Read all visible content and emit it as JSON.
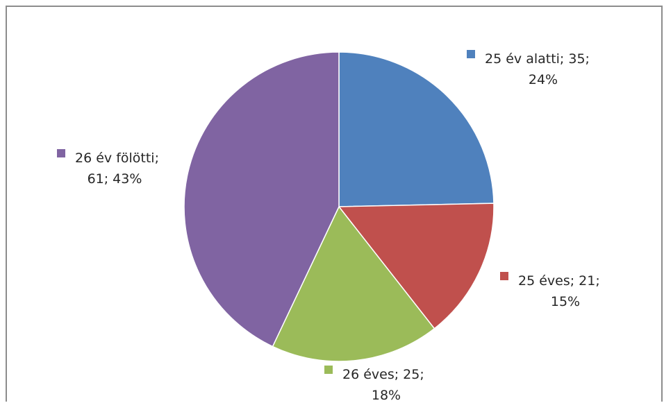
{
  "chart_data": {
    "type": "pie",
    "title": "",
    "slices": [
      {
        "name": "25 év alatti",
        "value": 35,
        "percent": "24%",
        "color": "#4F81BD",
        "label_line1": "25 év alatti; 35;",
        "label_line2": "24%"
      },
      {
        "name": "25 éves",
        "value": 21,
        "percent": "15%",
        "color": "#C0504D",
        "label_line1": "25 éves; 21;",
        "label_line2": "15%"
      },
      {
        "name": "26 éves",
        "value": 25,
        "percent": "18%",
        "color": "#9BBB59",
        "label_line1": "26 éves; 25;",
        "label_line2": "18%"
      },
      {
        "name": "26 év fölötti",
        "value": 61,
        "percent": "43%",
        "color": "#8064A2",
        "label_line1": "26 év fölötti;",
        "label_line2": "61; 43%"
      }
    ],
    "start_angle_deg": 0,
    "direction": "clockwise"
  }
}
